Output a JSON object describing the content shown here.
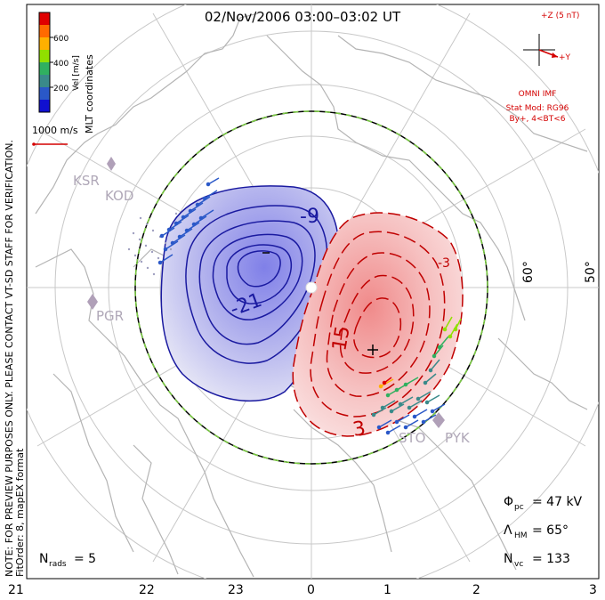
{
  "title": "02/Nov/2006 03:00–03:02 UT",
  "colorbar": {
    "label": "Vel [m/s]",
    "ticks": [
      "600",
      "400",
      "200"
    ],
    "colors": [
      "#e00000",
      "#ff6a00",
      "#ffb000",
      "#90e000",
      "#30b060",
      "#3a8a8a",
      "#2a58c8",
      "#1010d0"
    ]
  },
  "coord_label": "MLT coordinates",
  "vector_scale": {
    "label": "1000 m/s",
    "color": "#d40000"
  },
  "side_note": "NOTE: FOR PREVIEW PURPOSES ONLY. PLEASE CONTACT VT-SD STAFF FOR VERIFICATION.",
  "fit_order": "FitOrder: 8, mapEX format",
  "imf": {
    "axis_z": "+Z (5 nT)",
    "axis_y": "+Y",
    "source": "OMNI IMF",
    "model": "Stat Mod: RG96",
    "condition": "By+, 4<BT<6",
    "color": "#d40000"
  },
  "mlt_labels": [
    "21",
    "22",
    "23",
    "0",
    "1",
    "2",
    "3"
  ],
  "lat_labels": [
    "60°",
    "50°"
  ],
  "stations": [
    "KSR",
    "KOD",
    "PGR",
    "STO",
    "PYK"
  ],
  "contours": {
    "negative_labels": [
      "-9",
      "-21"
    ],
    "positive_labels": [
      "-3",
      "15",
      "3"
    ],
    "negative_color": "#1a1aa0",
    "positive_color": "#c00000"
  },
  "stats": {
    "phi_pc": {
      "symbol": "Φ",
      "sub": "pc",
      "value": "= 47 kV"
    },
    "lambda_hm": {
      "symbol": "Λ",
      "sub": "HM",
      "value": "= 65°"
    },
    "n_vc": {
      "symbol": "N",
      "sub": "vc",
      "value": "= 133"
    },
    "n_rads": {
      "symbol": "N",
      "sub": "rads",
      "value": "= 5"
    }
  }
}
